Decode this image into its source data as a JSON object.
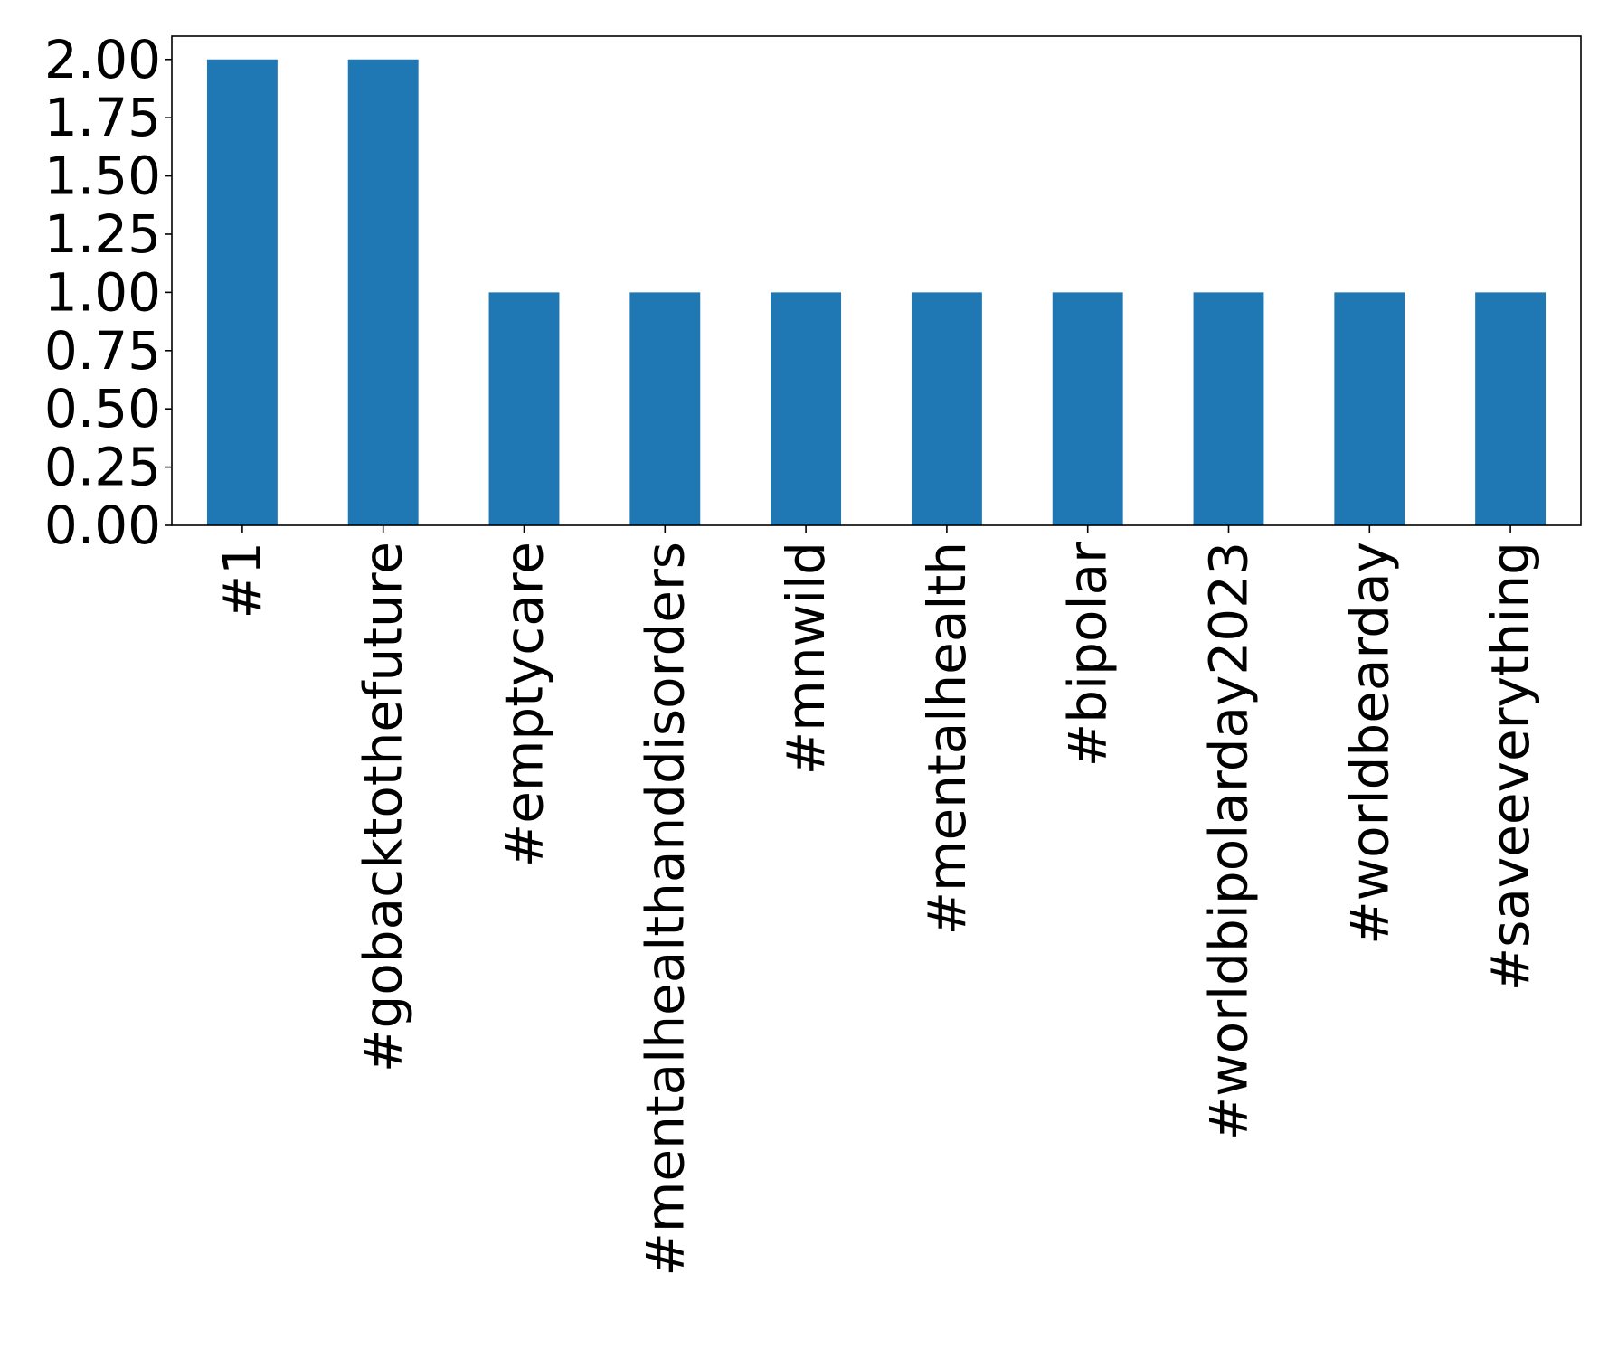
{
  "chart_data": {
    "type": "bar",
    "categories": [
      "#1",
      "#gobacktothefuture",
      "#emptycare",
      "#mentalhealthanddisorders",
      "#mnwild",
      "#mentalhealth",
      "#bipolar",
      "#worldbipolarday2023",
      "#worldbearday",
      "#saveeverything"
    ],
    "values": [
      2,
      2,
      1,
      1,
      1,
      1,
      1,
      1,
      1,
      1
    ],
    "title": "",
    "xlabel": "",
    "ylabel": "",
    "ylim": [
      0,
      2.1
    ],
    "yticks": [
      "0.00",
      "0.25",
      "0.50",
      "0.75",
      "1.00",
      "1.25",
      "1.50",
      "1.75",
      "2.00"
    ],
    "ytick_values": [
      0,
      0.25,
      0.5,
      0.75,
      1.0,
      1.25,
      1.5,
      1.75,
      2.0
    ],
    "bar_color": "#1f77b4",
    "grid": false,
    "legend": "none"
  }
}
